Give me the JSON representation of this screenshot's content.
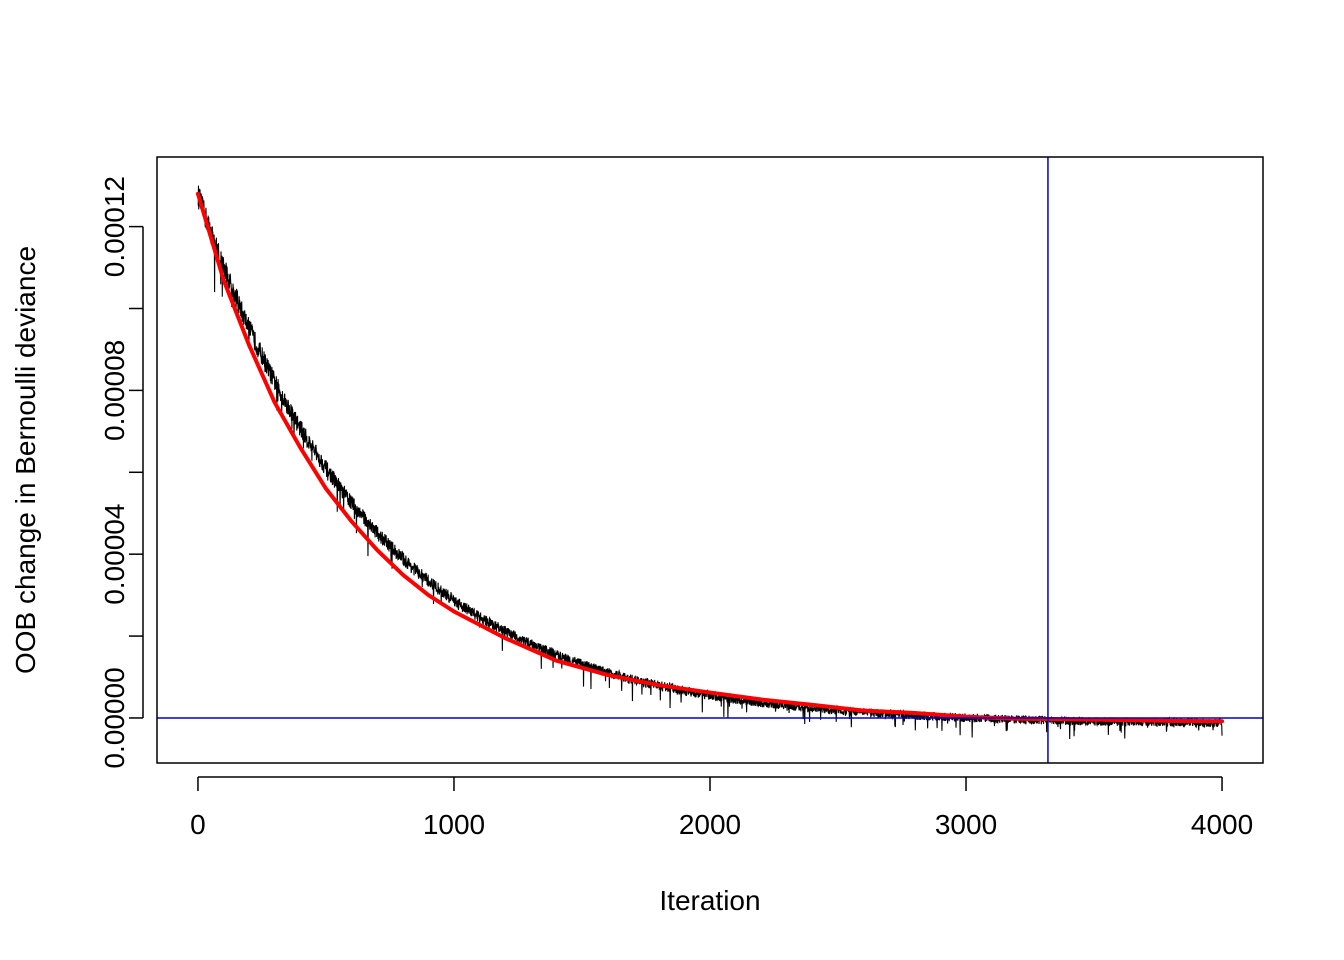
{
  "chart_data": {
    "type": "line",
    "title": "",
    "xlabel": "Iteration",
    "ylabel": "OOB change in Bernoulli deviance",
    "xlim": [
      -160,
      4160
    ],
    "ylim": [
      -1.1e-05,
      0.000137
    ],
    "x_ticks": [
      0,
      1000,
      2000,
      3000,
      4000
    ],
    "x_tick_labels": [
      "0",
      "1000",
      "2000",
      "3000",
      "4000"
    ],
    "y_ticks": [
      0,
      2e-05,
      4e-05,
      6e-05,
      8e-05,
      0.0001,
      0.00012
    ],
    "y_tick_labels": [
      "0.00000",
      "",
      "0.00004",
      "",
      "0.00008",
      "",
      "0.00012"
    ],
    "grid": false,
    "series": [
      {
        "kind": "per-iteration-change",
        "color": "#000000",
        "n": 4000,
        "smooth_approx": {
          "start": 0.000128,
          "decay_per_iter": 0.00145,
          "asymptote": -1.5e-06
        },
        "noise_amplitude": 3e-06
      },
      {
        "kind": "smoothed",
        "color": "#ff0000",
        "x": [
          0,
          100,
          200,
          300,
          400,
          500,
          600,
          700,
          800,
          900,
          1000,
          1200,
          1400,
          1600,
          1800,
          2000,
          2200,
          2400,
          2600,
          2800,
          3000,
          3200,
          3400,
          3600,
          3800,
          4000
        ],
        "y": [
          0.000128,
          0.000107,
          9.1e-05,
          7.7e-05,
          6.6e-05,
          5.6e-05,
          4.8e-05,
          4.1e-05,
          3.5e-05,
          3e-05,
          2.6e-05,
          1.95e-05,
          1.4e-05,
          1.05e-05,
          8e-06,
          6.2e-06,
          4.5e-06,
          3.2e-06,
          1.8e-06,
          1.2e-06,
          3e-07,
          -2e-07,
          -3e-07,
          -5e-07,
          -7e-07,
          -8e-07
        ]
      }
    ],
    "reference_lines": [
      {
        "orientation": "horizontal",
        "value": 0,
        "color": "#0000cc"
      },
      {
        "orientation": "vertical",
        "value": 3320,
        "color": "#0000cc"
      }
    ]
  }
}
